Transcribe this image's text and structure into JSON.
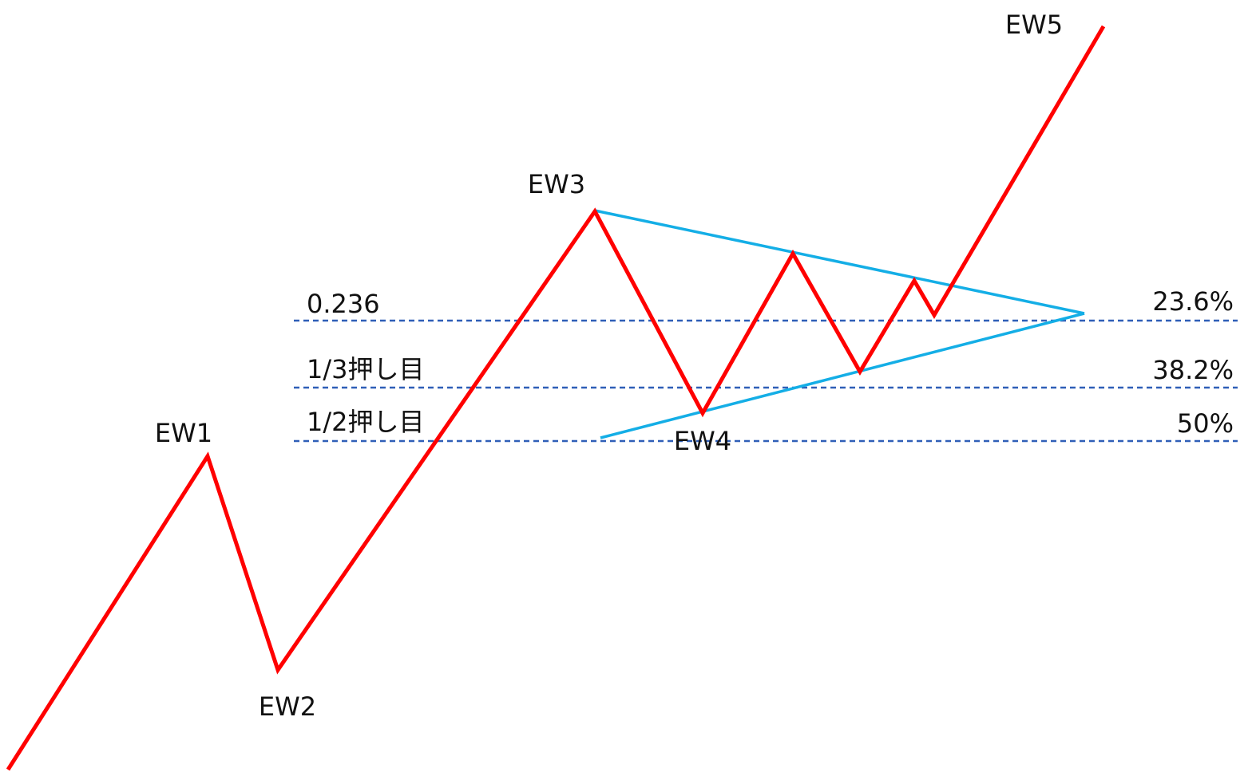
{
  "waves": [
    {
      "label": "EW1"
    },
    {
      "label": "EW2"
    },
    {
      "label": "EW3"
    },
    {
      "label": "EW4"
    },
    {
      "label": "EW5"
    }
  ],
  "levels": [
    {
      "left_label": "0.236",
      "right_label": "23.6%"
    },
    {
      "left_label": "1/3押し目",
      "right_label": "38.2%"
    },
    {
      "left_label": "1/2押し目",
      "right_label": "50%"
    }
  ]
}
